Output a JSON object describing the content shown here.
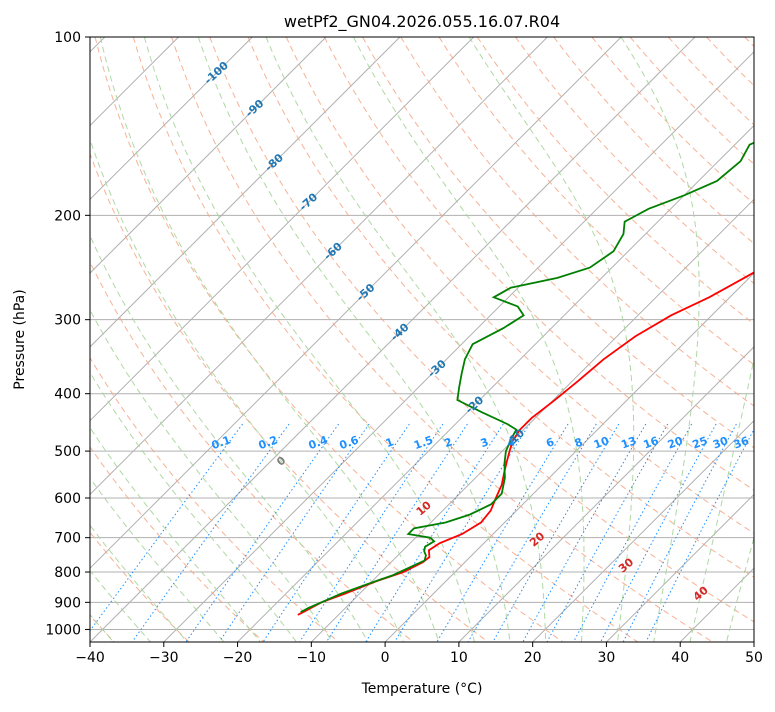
{
  "chart_data": {
    "type": "line",
    "title": "wetPf2_GN04.2026.055.16.07.R04",
    "xlabel": "Temperature (°C)",
    "ylabel": "Pressure (hPa)",
    "xlim": [
      -40,
      50
    ],
    "ylim": [
      1050,
      100
    ],
    "y_scale": "log",
    "skew": "skew-T log-p diagram",
    "grid": true,
    "x_ticks": [
      -40,
      -30,
      -20,
      -10,
      0,
      10,
      20,
      30,
      40,
      50
    ],
    "x_tick_labels": [
      "−40",
      "−30",
      "−20",
      "−10",
      "0",
      "10",
      "20",
      "30",
      "40",
      "50"
    ],
    "y_ticks": [
      100,
      200,
      300,
      400,
      500,
      600,
      700,
      800,
      900,
      1000
    ],
    "y_tick_labels": [
      "100",
      "200",
      "300",
      "400",
      "500",
      "600",
      "700",
      "800",
      "900",
      "1000"
    ],
    "isotherm_labels": [
      {
        "text": "-100",
        "value": -100,
        "p": 115
      },
      {
        "text": "-90",
        "value": -90,
        "p": 132
      },
      {
        "text": "-80",
        "value": -80,
        "p": 163
      },
      {
        "text": "-70",
        "value": -70,
        "p": 190
      },
      {
        "text": "-60",
        "value": -60,
        "p": 230
      },
      {
        "text": "-50",
        "value": -50,
        "p": 270
      },
      {
        "text": "-40",
        "value": -40,
        "p": 315
      },
      {
        "text": "-30",
        "value": -30,
        "p": 363
      },
      {
        "text": "-20",
        "value": -20,
        "p": 418
      },
      {
        "text": "-10",
        "value": -10,
        "p": 475
      }
    ],
    "mixing_ratio_labels": [
      "0.1",
      "0.2",
      "0.4",
      "0.6",
      "1",
      "1.5",
      "2",
      "3",
      "4",
      "6",
      "8",
      "10",
      "13",
      "16",
      "20",
      "25",
      "30",
      "36"
    ],
    "mixing_ratio_values": [
      0.1,
      0.2,
      0.4,
      0.6,
      1,
      1.5,
      2,
      3,
      4,
      6,
      8,
      10,
      13,
      16,
      20,
      25,
      30,
      36
    ],
    "mixing_ratio_label_pressure": 500,
    "moist_adiabat_labels": [
      {
        "text": "0",
        "value": 0,
        "p": 520
      },
      {
        "text": "10",
        "value": 10,
        "p": 625
      },
      {
        "text": "20",
        "value": 20,
        "p": 705
      },
      {
        "text": "30",
        "value": 30,
        "p": 780
      },
      {
        "text": "40",
        "value": 40,
        "p": 870
      }
    ],
    "colors": {
      "temperature": "#ff0000",
      "dewpoint": "#008000",
      "isotherm_label": "#1f77b4",
      "mixing_ratio": "#1e90ff",
      "dry_adiabat": "#f4a582",
      "moist_adiabat": "#a6d49a",
      "moist_label": "#d62728",
      "zero_label": "#808080",
      "grid": "#b0b0b0"
    },
    "series": [
      {
        "name": "",
        "role": "temperature",
        "color": "#ff0000",
        "points": [
          [
            -15.5,
            945
          ],
          [
            -15,
            930
          ],
          [
            -14,
            900
          ],
          [
            -12,
            870
          ],
          [
            -9.5,
            830
          ],
          [
            -7,
            800
          ],
          [
            -5.7,
            770
          ],
          [
            -5.5,
            755
          ],
          [
            -6.5,
            735
          ],
          [
            -6,
            715
          ],
          [
            -4.2,
            690
          ],
          [
            -3.2,
            660
          ],
          [
            -3.5,
            630
          ],
          [
            -4.5,
            600
          ],
          [
            -5.5,
            570
          ],
          [
            -7,
            540
          ],
          [
            -8,
            520
          ],
          [
            -9,
            500
          ],
          [
            -10,
            480
          ],
          [
            -10.5,
            460
          ],
          [
            -10.5,
            440
          ],
          [
            -9.8,
            410
          ],
          [
            -9.2,
            380
          ],
          [
            -8.7,
            350
          ],
          [
            -7.5,
            320
          ],
          [
            -5.5,
            295
          ],
          [
            -2.8,
            275
          ],
          [
            -1.2,
            260
          ],
          [
            1,
            240
          ],
          [
            3,
            220
          ],
          [
            5,
            200
          ],
          [
            7.5,
            180
          ],
          [
            10,
            160
          ],
          [
            12,
            145
          ],
          [
            14.5,
            130
          ],
          [
            16.5,
            120
          ],
          [
            19,
            112
          ],
          [
            21.5,
            105
          ],
          [
            23,
            100
          ]
        ]
      },
      {
        "name": "",
        "role": "dewpoint",
        "color": "#008000",
        "points": [
          [
            -15.5,
            935
          ],
          [
            -15,
            920
          ],
          [
            -14,
            900
          ],
          [
            -12.5,
            870
          ],
          [
            -10,
            835
          ],
          [
            -8,
            810
          ],
          [
            -6.5,
            780
          ],
          [
            -5.7,
            765
          ],
          [
            -6.2,
            750
          ],
          [
            -7,
            738
          ],
          [
            -7.5,
            725
          ],
          [
            -7,
            710
          ],
          [
            -8,
            700
          ],
          [
            -11.5,
            690
          ],
          [
            -11.5,
            675
          ],
          [
            -8,
            660
          ],
          [
            -5.8,
            640
          ],
          [
            -4.3,
            615
          ],
          [
            -4.3,
            590
          ],
          [
            -6,
            555
          ],
          [
            -8,
            525
          ],
          [
            -9.5,
            500
          ],
          [
            -10.5,
            475
          ],
          [
            -11,
            460
          ],
          [
            -13,
            450
          ],
          [
            -18,
            430
          ],
          [
            -23,
            410
          ],
          [
            -24.5,
            390
          ],
          [
            -26,
            370
          ],
          [
            -27.5,
            350
          ],
          [
            -28.5,
            330
          ],
          [
            -26.5,
            310
          ],
          [
            -25.5,
            295
          ],
          [
            -27.5,
            285
          ],
          [
            -32,
            275
          ],
          [
            -31,
            265
          ],
          [
            -26,
            255
          ],
          [
            -23,
            245
          ],
          [
            -22,
            230
          ],
          [
            -23,
            215
          ],
          [
            -24.5,
            205
          ],
          [
            -23,
            195
          ],
          [
            -20,
            185
          ],
          [
            -17.5,
            175
          ],
          [
            -17,
            162
          ],
          [
            -18,
            152
          ],
          [
            -16,
            145
          ],
          [
            -12.5,
            140
          ],
          [
            -9,
            135
          ],
          [
            -6,
            130
          ],
          [
            -3.5,
            125
          ],
          [
            -1,
            120
          ],
          [
            1,
            115
          ],
          [
            3.5,
            110
          ],
          [
            5.5,
            105
          ],
          [
            8,
            100
          ]
        ]
      }
    ]
  }
}
